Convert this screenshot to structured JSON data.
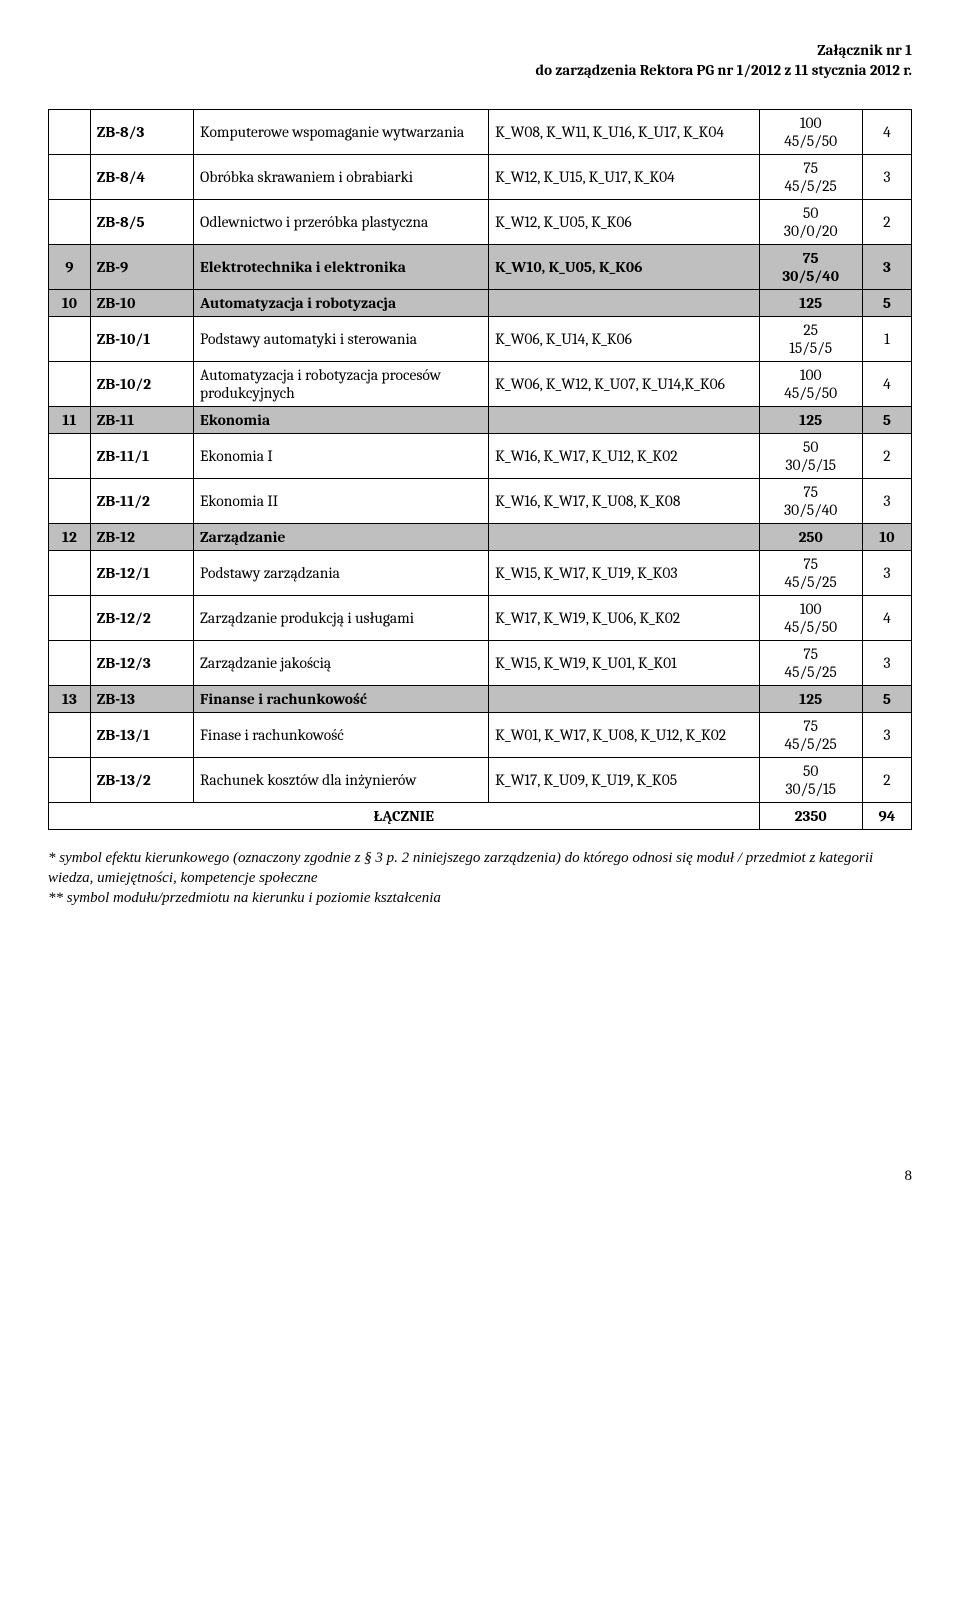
{
  "header": {
    "line1": "Załącznik nr 1",
    "line2": "do zarządzenia Rektora PG nr 1/2012 z 11 stycznia 2012 r."
  },
  "rows": [
    {
      "type": "row",
      "num": "",
      "code": "ZB-8/3",
      "name": "Komputerowe wspomaganie wytwarzania",
      "codes": "K_W08, K_W11, K_U16, K_U17, K_K04",
      "hours": "100\n45/5/50",
      "ects": "4"
    },
    {
      "type": "row",
      "num": "",
      "code": "ZB-8/4",
      "name": "Obróbka skrawaniem i obrabiarki",
      "codes": "K_W12, K_U15, K_U17, K_K04",
      "hours": "75\n45/5/25",
      "ects": "3"
    },
    {
      "type": "row",
      "num": "",
      "code": "ZB-8/5",
      "name": "Odlewnictwo i przeróbka plastyczna",
      "codes": "K_W12, K_U05, K_K06",
      "hours": "50\n30/0/20",
      "ects": "2"
    },
    {
      "type": "section",
      "num": "9",
      "code": "ZB-9",
      "name": "Elektrotechnika i elektronika",
      "codes": "K_W10, K_U05, K_K06",
      "hours": "75\n30/5/40",
      "ects": "3"
    },
    {
      "type": "section",
      "num": "10",
      "code": "ZB-10",
      "name": "Automatyzacja i robotyzacja",
      "codes": "",
      "hours": "125",
      "ects": "5"
    },
    {
      "type": "row",
      "num": "",
      "code": "ZB-10/1",
      "name": "Podstawy automatyki i sterowania",
      "codes": "K_W06, K_U14, K_K06",
      "hours": "25\n15/5/5",
      "ects": "1"
    },
    {
      "type": "row",
      "num": "",
      "code": "ZB-10/2",
      "name": "Automatyzacja i robotyzacja procesów produkcyjnych",
      "codes": "K_W06, K_W12, K_U07, K_U14,K_K06",
      "hours": "100\n45/5/50",
      "ects": "4"
    },
    {
      "type": "section",
      "num": "11",
      "code": "ZB-11",
      "name": "Ekonomia",
      "codes": "",
      "hours": "125",
      "ects": "5"
    },
    {
      "type": "row",
      "num": "",
      "code": "ZB-11/1",
      "name": "Ekonomia I",
      "codes": "K_W16, K_W17, K_U12, K_K02",
      "hours": "50\n30/5/15",
      "ects": "2"
    },
    {
      "type": "row",
      "num": "",
      "code": "ZB-11/2",
      "name": "Ekonomia II",
      "codes": "K_W16, K_W17, K_U08, K_K08",
      "hours": "75\n30/5/40",
      "ects": "3"
    },
    {
      "type": "section",
      "num": "12",
      "code": "ZB-12",
      "name": "Zarządzanie",
      "codes": "",
      "hours": "250",
      "ects": "10"
    },
    {
      "type": "row",
      "num": "",
      "code": "ZB-12/1",
      "name": "Podstawy zarządzania",
      "codes": "K_W15, K_W17, K_U19, K_K03",
      "hours": "75\n45/5/25",
      "ects": "3"
    },
    {
      "type": "row",
      "num": "",
      "code": "ZB-12/2",
      "name": "Zarządzanie produkcją i usługami",
      "codes": "K_W17, K_W19, K_U06, K_K02",
      "hours": "100\n45/5/50",
      "ects": "4"
    },
    {
      "type": "row",
      "num": "",
      "code": "ZB-12/3",
      "name": "Zarządzanie jakością",
      "codes": "K_W15, K_W19, K_U01, K_K01",
      "hours": "75\n45/5/25",
      "ects": "3"
    },
    {
      "type": "section",
      "num": "13",
      "code": "ZB-13",
      "name": "Finanse i rachunkowość",
      "codes": "",
      "hours": "125",
      "ects": "5"
    },
    {
      "type": "row",
      "num": "",
      "code": "ZB-13/1",
      "name": "Finase i rachunkowość",
      "codes": "K_W01, K_W17, K_U08, K_U12, K_K02",
      "hours": "75\n45/5/25",
      "ects": "3"
    },
    {
      "type": "row",
      "num": "",
      "code": "ZB-13/2",
      "name": "Rachunek kosztów dla inżynierów",
      "codes": "K_W17, K_U09, K_U19, K_K05",
      "hours": "50\n30/5/15",
      "ects": "2"
    }
  ],
  "total": {
    "label": "ŁĄCZNIE",
    "hours": "2350",
    "ects": "94"
  },
  "footnotes": {
    "f1": "* symbol efektu kierunkowego (oznaczony zgodnie z § 3 p. 2 niniejszego zarządzenia) do którego odnosi się moduł / przedmiot z kategorii wiedza, umiejętności, kompetencje społeczne",
    "f2": "** symbol modułu/przedmiotu na kierunku i poziomie kształcenia"
  },
  "page_number": "8",
  "colors": {
    "section_bg": "#bfbfbf",
    "border": "#000000",
    "text": "#000000",
    "background": "#ffffff"
  }
}
